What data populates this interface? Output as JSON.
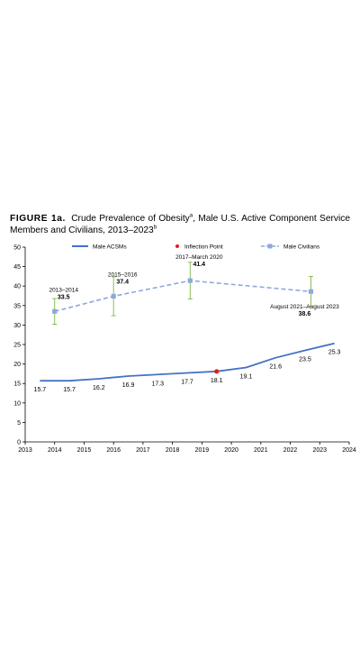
{
  "figure": {
    "label": "FIGURE 1a.",
    "title_main": "Crude Prevalence of Obesity",
    "title_sup_a": "a",
    "title_rest": ", Male U.S. Active Component Service Members and Civilians, 2013–2023",
    "title_sup_b": "b"
  },
  "chart_data": {
    "type": "line",
    "xlim": [
      2013,
      2024
    ],
    "ylim": [
      0,
      50
    ],
    "x_ticks": [
      "2013",
      "2014",
      "2015",
      "2016",
      "2017",
      "2018",
      "2019",
      "2020",
      "2021",
      "2022",
      "2023",
      "2024"
    ],
    "y_ticks": [
      "0",
      "5",
      "10",
      "15",
      "20",
      "25",
      "30",
      "35",
      "40",
      "45",
      "50"
    ],
    "grid": false,
    "legend_position": "top",
    "legend": [
      {
        "name": "Male ACSMs",
        "style": "solid-line",
        "color": "#4472C4"
      },
      {
        "name": "Inflection Point",
        "style": "dot",
        "color": "#E0201B"
      },
      {
        "name": "Male Civilians",
        "style": "dashed-line-square",
        "color": "#8EA9DB"
      }
    ],
    "series": [
      {
        "name": "Male ACSMs",
        "color": "#4472C4",
        "x": [
          2013.5,
          2014.5,
          2015.5,
          2016.5,
          2017.5,
          2018.5,
          2019.5,
          2020.5,
          2021.5,
          2022.5,
          2023.5
        ],
        "y": [
          15.7,
          15.7,
          16.2,
          16.9,
          17.3,
          17.7,
          18.1,
          19.1,
          21.6,
          23.5,
          25.3
        ],
        "labels": [
          "15.7",
          "15.7",
          "16.2",
          "16.9",
          "17.3",
          "17.7",
          "18.1",
          "19.1",
          "21.6",
          "23.5",
          "25.3"
        ]
      },
      {
        "name": "Male Civilians",
        "color": "#8EA9DB",
        "x": [
          2014.0,
          2016.0,
          2018.6,
          2022.7
        ],
        "y": [
          33.5,
          37.4,
          41.4,
          38.6
        ],
        "error_low": [
          30.2,
          32.4,
          36.7,
          34.8
        ],
        "error_high": [
          36.8,
          42.4,
          46.1,
          42.5
        ],
        "period_labels": [
          "2013–2014",
          "2015–2016",
          "2017–March 2020",
          "August 2021–August 2023"
        ],
        "labels": [
          "33.5",
          "37.4",
          "41.4",
          "38.6"
        ]
      }
    ],
    "inflection_point": {
      "x": 2019.5,
      "y": 18.1,
      "color": "#E0201B"
    },
    "error_bar_color": "#7DB546"
  }
}
